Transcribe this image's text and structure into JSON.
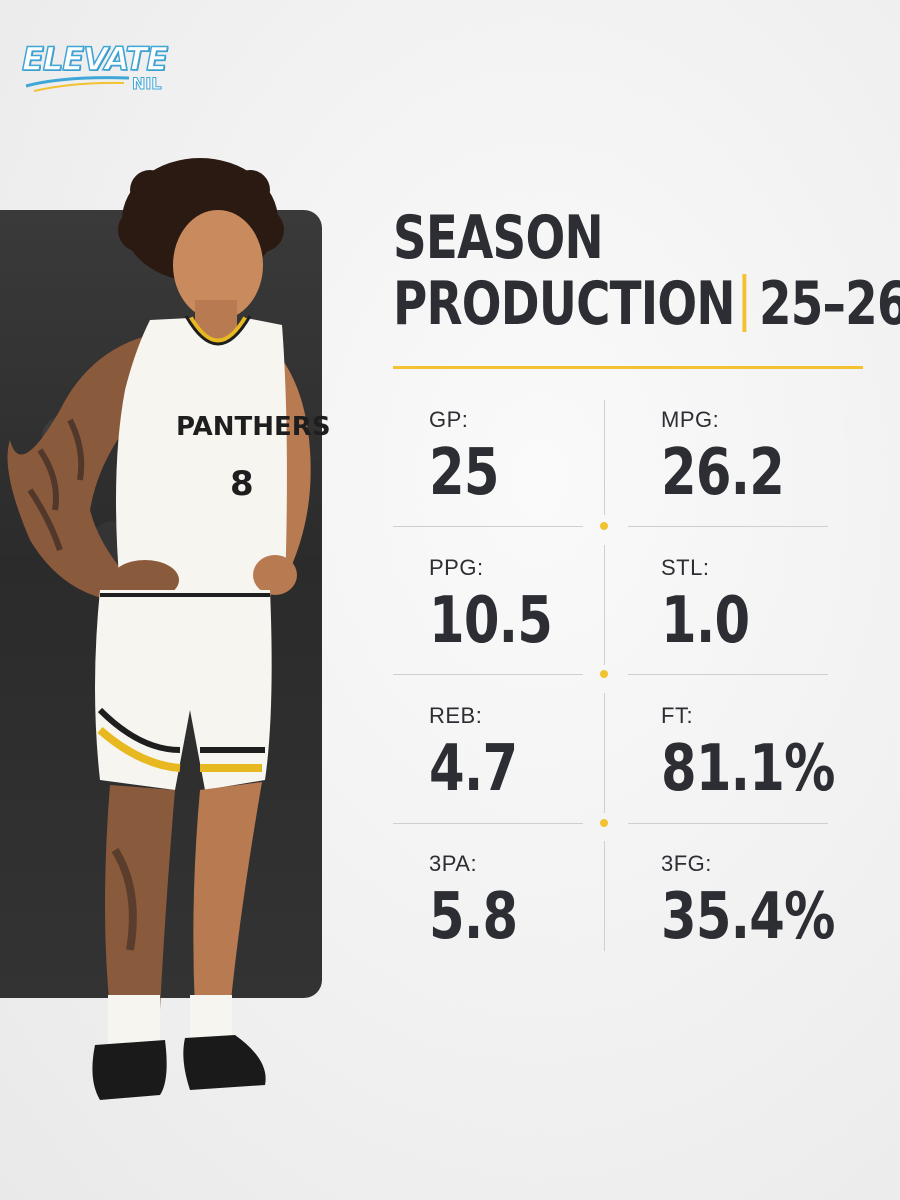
{
  "brand": {
    "logo_word": "ELEVATE",
    "logo_sub": "NIL",
    "accent_color": "#f2c230",
    "logo_color": "#3fa7d8"
  },
  "title": {
    "line1": "SEASON",
    "line2_left": "PRODUCTION",
    "line2_right": "25–26"
  },
  "player": {
    "jersey_text": "PANTHERS",
    "jersey_number": "8"
  },
  "stats": [
    {
      "label": "GP:",
      "value": "25"
    },
    {
      "label": "MPG:",
      "value": "26.2"
    },
    {
      "label": "PPG:",
      "value": "10.5"
    },
    {
      "label": "STL:",
      "value": "1.0"
    },
    {
      "label": "REB:",
      "value": "4.7"
    },
    {
      "label": "FT:",
      "value": "81.1%"
    },
    {
      "label": "3PA:",
      "value": "5.8"
    },
    {
      "label": "3FG:",
      "value": "35.4%"
    }
  ]
}
